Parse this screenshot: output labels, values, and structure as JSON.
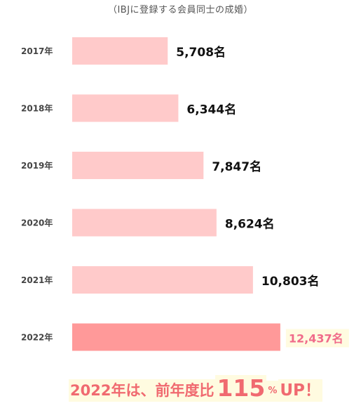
{
  "subtitle": "（IBJに登録する会員同士の成婚）",
  "chart_data": {
    "type": "bar",
    "orientation": "horizontal",
    "categories": [
      "2017年",
      "2018年",
      "2019年",
      "2020年",
      "2021年",
      "2022年"
    ],
    "values": [
      5708,
      6344,
      7847,
      8624,
      10803,
      12437
    ],
    "value_labels": [
      "5,708名",
      "6,344名",
      "7,847名",
      "8,624名",
      "10,803名",
      "12,437名"
    ],
    "highlight_index": 5,
    "xlim": [
      0,
      15500
    ],
    "grid": false,
    "legend": "none",
    "colors": {
      "bar": "#ffcaca",
      "bar_highlight": "#ff9999",
      "highlight_text": "#f06b8a",
      "summary_text": "#f06a70",
      "highlight_bg": "#fffbe0"
    }
  },
  "summary": {
    "prefix": "2022年は、前年度比",
    "number": "115",
    "percent": "%",
    "suffix": "UP！"
  }
}
